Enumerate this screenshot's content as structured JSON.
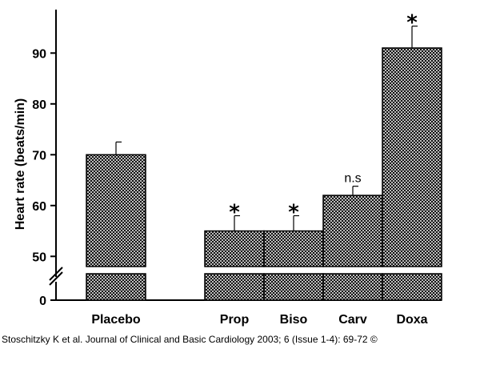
{
  "chart_data": {
    "type": "bar",
    "ylabel": "Heart rate (beats/min)",
    "categories": [
      "Placebo",
      "Prop",
      "Biso",
      "Carv",
      "Doxa"
    ],
    "values": [
      70,
      55,
      55,
      62,
      91
    ],
    "errors": [
      2.5,
      3,
      3,
      1.8,
      4.3
    ],
    "annotations": [
      "",
      "*",
      "*",
      "n.s",
      "*"
    ],
    "ylim": [
      0,
      96
    ],
    "axis_break": [
      0,
      48
    ],
    "yticks": [
      0,
      50,
      60,
      70,
      80,
      90
    ],
    "ytick_labels": [
      "0",
      "50",
      "60",
      "70",
      "80",
      "90"
    ],
    "grid": false,
    "legend": "none",
    "bar_fill": "crosshatch",
    "bar_color": "#000000"
  },
  "citation": "Stoschitzky K et al. Journal of Clinical and Basic Cardiology 2003; 6 (Issue 1-4): 69-72 ©"
}
